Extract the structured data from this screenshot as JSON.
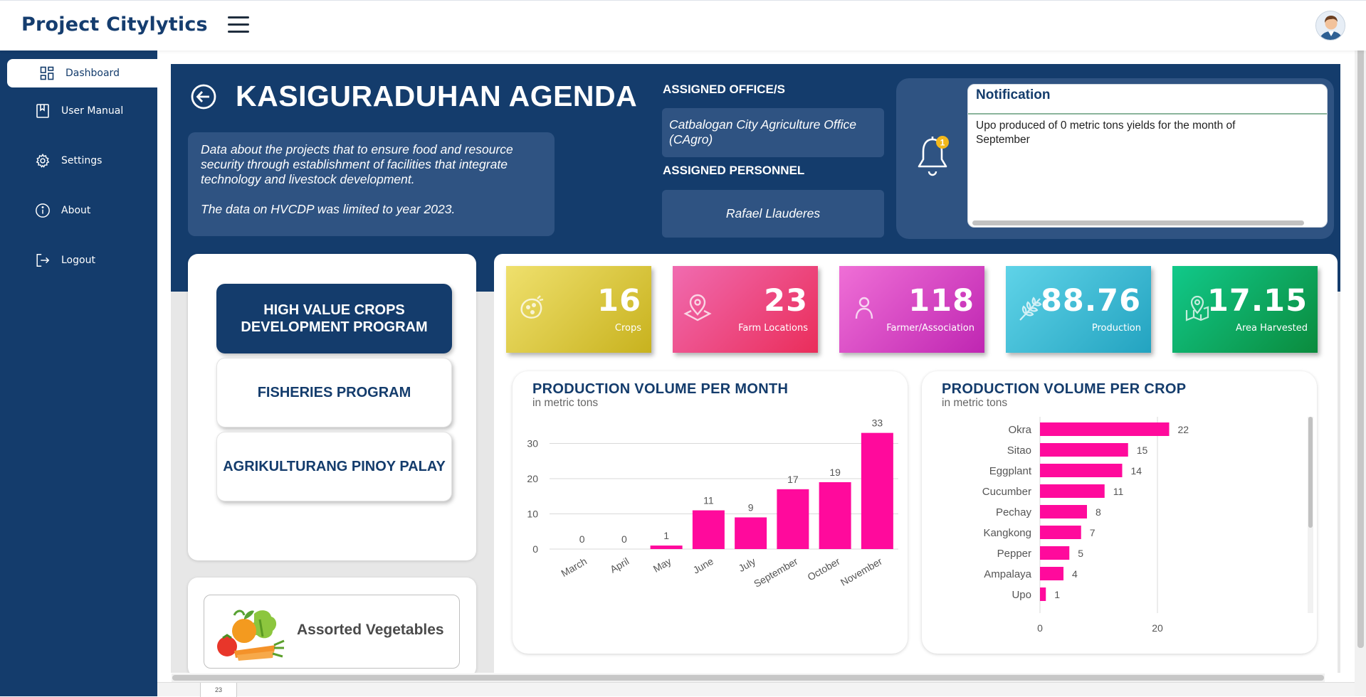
{
  "app": {
    "title": "Project Citylytics"
  },
  "sidebar": {
    "items": [
      {
        "label": "Dashboard",
        "icon": "grid-icon",
        "active": true
      },
      {
        "label": "User Manual",
        "icon": "book-icon",
        "active": false
      },
      {
        "label": "Settings",
        "icon": "gear-icon",
        "active": false
      },
      {
        "label": "About",
        "icon": "info-icon",
        "active": false
      },
      {
        "label": "Logout",
        "icon": "logout-icon",
        "active": false
      }
    ]
  },
  "header": {
    "title": "KASIGURADUHAN AGENDA",
    "description": "Data about the projects that to ensure food and resource security through establishment of facilities that integrate technology and livestock development.",
    "description_note": "The data on HVCDP was limited to year 2023.",
    "office_heading": "ASSIGNED OFFICE/S",
    "office": "Catbalogan City Agriculture Office (CAgro)",
    "personnel_heading": "ASSIGNED PERSONNEL",
    "personnel": "Rafael Llauderes"
  },
  "notification": {
    "title": "Notification",
    "badge_count": "1",
    "message": "Upo produced of 0 metric tons yields for the month of September"
  },
  "programs": [
    {
      "label": "HIGH VALUE CROPS DEVELOPMENT PROGRAM",
      "active": true
    },
    {
      "label": "FISHERIES PROGRAM",
      "active": false
    },
    {
      "label": "AGRIKULTURANG PINOY PALAY",
      "active": false
    }
  ],
  "crop_card": {
    "label": "Assorted Vegetables"
  },
  "stats": [
    {
      "value": "16",
      "label": "Crops",
      "icon": "potato-icon",
      "colors": [
        "#efe06d",
        "#c8b21e"
      ]
    },
    {
      "value": "23",
      "label": "Farm Locations",
      "icon": "location-icon",
      "colors": [
        "#f06bb0",
        "#ea2d5a"
      ]
    },
    {
      "value": "118",
      "label": "Farmer/Association",
      "icon": "person-icon",
      "colors": [
        "#ef6fd6",
        "#bf26b2"
      ]
    },
    {
      "value": "88.76",
      "label": "Production",
      "icon": "wheat-icon",
      "colors": [
        "#5fd3e8",
        "#23a3c0"
      ]
    },
    {
      "value": "17.15",
      "label": "Area Harvested",
      "icon": "map-pin-icon",
      "colors": [
        "#11c98a",
        "#0b8b3d"
      ]
    }
  ],
  "colors": {
    "brand": "#143c6c",
    "bar": "#ff0a9c",
    "panel": "#2f5382"
  },
  "charts": {
    "monthly_title": "PRODUCTION VOLUME PER MONTH",
    "monthly_subtitle": "in metric tons",
    "crop_title": "PRODUCTION VOLUME PER CROP",
    "crop_subtitle": "in metric tons"
  },
  "chart_data": [
    {
      "type": "bar",
      "title": "PRODUCTION VOLUME PER MONTH",
      "subtitle": "in metric tons",
      "categories": [
        "March",
        "April",
        "May",
        "June",
        "July",
        "September",
        "October",
        "November"
      ],
      "values": [
        0,
        0,
        1,
        11,
        9,
        17,
        19,
        33
      ],
      "yticks": [
        0,
        10,
        20,
        30
      ],
      "ylim": [
        0,
        35
      ],
      "grid": true
    },
    {
      "type": "bar",
      "orientation": "horizontal",
      "title": "PRODUCTION VOLUME PER CROP",
      "subtitle": "in metric tons",
      "categories": [
        "Okra",
        "Sitao",
        "Eggplant",
        "Cucumber",
        "Pechay",
        "Kangkong",
        "Pepper",
        "Ampalaya",
        "Upo"
      ],
      "values": [
        22,
        15,
        14,
        11,
        8,
        7,
        5,
        4,
        1
      ],
      "xticks": [
        0,
        20
      ],
      "xlim": [
        0,
        25
      ],
      "grid": true
    }
  ],
  "footer": {
    "tab_label": "23"
  }
}
